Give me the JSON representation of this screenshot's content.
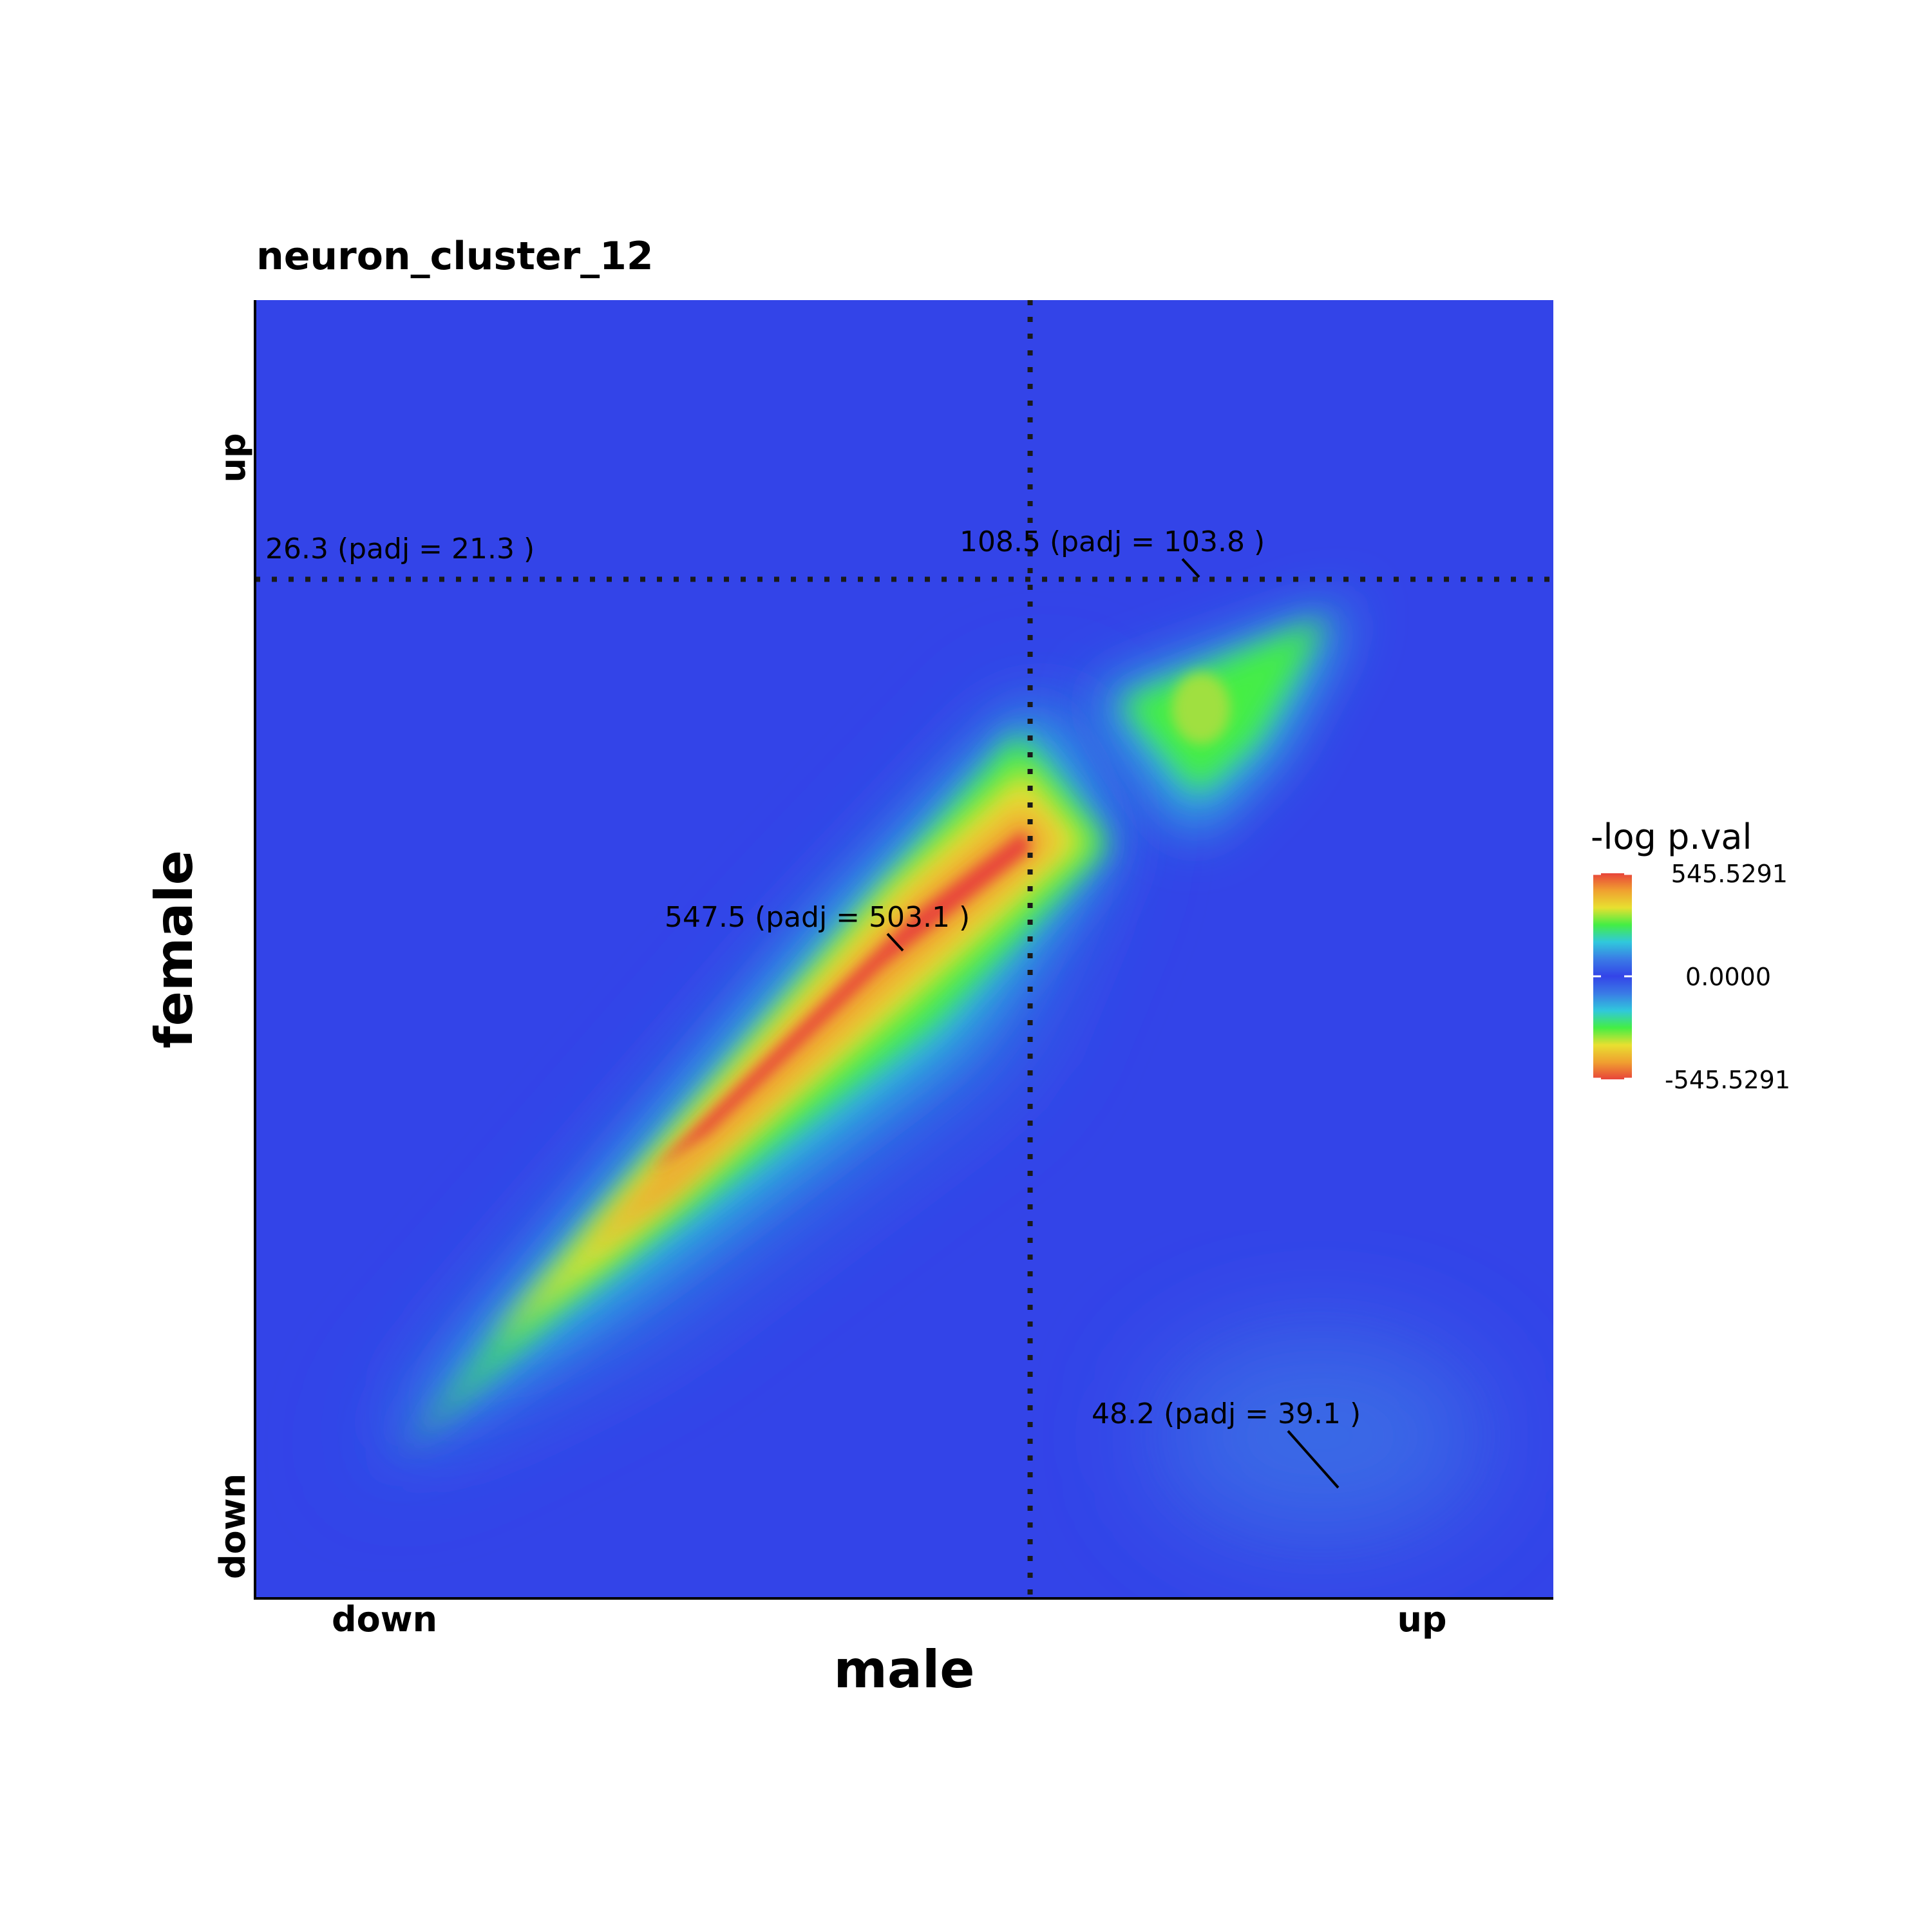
{
  "chart_data": {
    "type": "heatmap",
    "title": "neuron_cluster_12",
    "xlabel": "male",
    "ylabel": "female",
    "x_tick_labels": [
      "down",
      "up"
    ],
    "y_tick_labels": [
      "down",
      "up"
    ],
    "legend": {
      "title": "-log p.val",
      "labels": [
        "545.5291",
        "0.0000",
        "-545.5291"
      ],
      "max": 545.5291,
      "min": -545.5291,
      "placement": "right"
    },
    "threshold_lines": {
      "x_fraction": 0.597,
      "y_fraction": 0.785,
      "style": "dotted"
    },
    "quadrant_annotations": [
      {
        "quadrant": "up-down",
        "text": "26.3 (padj = 21.3 )",
        "value": 26.3,
        "padj": 21.3
      },
      {
        "quadrant": "up-up",
        "text": "108.5 (padj = 103.8 )",
        "value": 108.5,
        "padj": 103.8
      },
      {
        "quadrant": "down-down",
        "text": "547.5 (padj = 503.1 )",
        "value": 547.5,
        "padj": 503.1
      },
      {
        "quadrant": "down-up",
        "text": "48.2 (padj = 39.1 )",
        "value": 48.2,
        "padj": 39.1
      }
    ],
    "colors": {
      "scale": [
        "#E8443A",
        "#F0A030",
        "#E8E030",
        "#44EE44",
        "#30C8DC",
        "#3A7BE6",
        "#3344E8"
      ],
      "background": "#3344E8",
      "grid": false
    }
  }
}
